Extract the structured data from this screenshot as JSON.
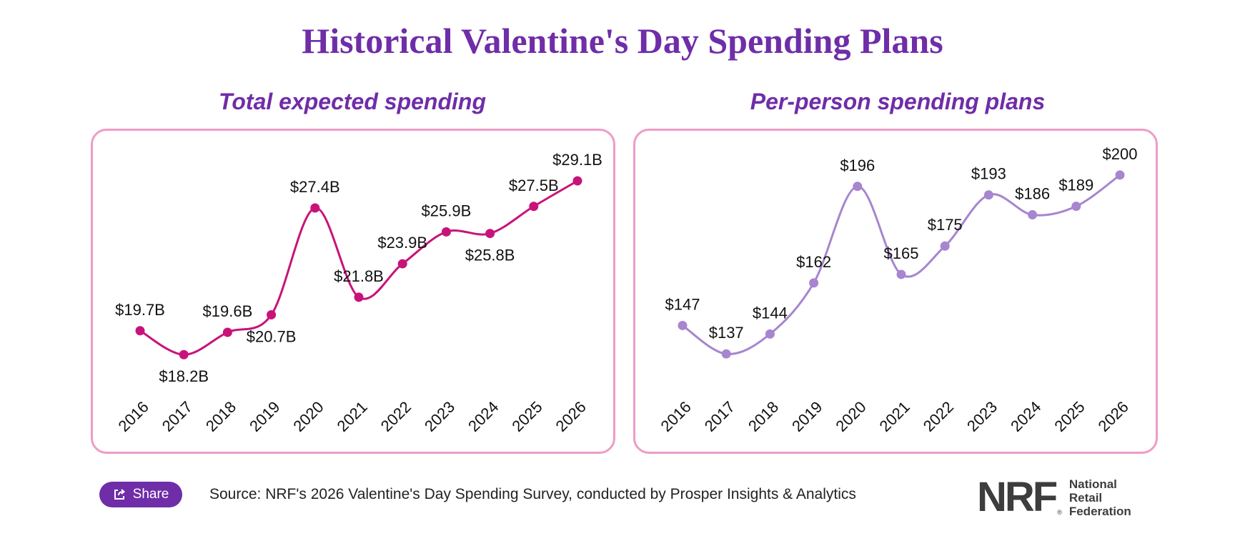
{
  "page": {
    "title": "Historical Valentine's Day Spending Plans"
  },
  "chart_data": [
    {
      "type": "line",
      "title": "Total expected spending",
      "categories": [
        "2016",
        "2017",
        "2018",
        "2019",
        "2020",
        "2021",
        "2022",
        "2023",
        "2024",
        "2025",
        "2026"
      ],
      "values": [
        19.7,
        18.2,
        19.6,
        20.7,
        27.4,
        21.8,
        23.9,
        25.9,
        25.8,
        27.5,
        29.1
      ],
      "labels": [
        "$19.7B",
        "$18.2B",
        "$19.6B",
        "$20.7B",
        "$27.4B",
        "$21.8B",
        "$23.9B",
        "$25.9B",
        "$25.8B",
        "$27.5B",
        "$29.1B"
      ],
      "label_positions": [
        "above",
        "below",
        "above",
        "below",
        "above",
        "above",
        "above",
        "above",
        "below",
        "above",
        "above"
      ],
      "ylim": [
        17,
        30
      ],
      "xlabel": "",
      "ylabel": "",
      "grid": false,
      "color": "#c8137a"
    },
    {
      "type": "line",
      "title": "Per-person spending plans",
      "categories": [
        "2016",
        "2017",
        "2018",
        "2019",
        "2020",
        "2021",
        "2022",
        "2023",
        "2024",
        "2025",
        "2026"
      ],
      "values": [
        147,
        137,
        144,
        162,
        196,
        165,
        175,
        193,
        186,
        189,
        200
      ],
      "labels": [
        "$147",
        "$137",
        "$144",
        "$162",
        "$196",
        "$165",
        "$175",
        "$193",
        "$186",
        "$189",
        "$200"
      ],
      "label_positions": [
        "above",
        "above",
        "above",
        "above",
        "above",
        "above",
        "above",
        "above",
        "above",
        "above",
        "above"
      ],
      "ylim": [
        130,
        203
      ],
      "xlabel": "",
      "ylabel": "",
      "grid": false,
      "color": "#a785cf"
    }
  ],
  "footer": {
    "share_label": "Share",
    "source": "Source: NRF's 2026 Valentine's Day Spending Survey, conducted by Prosper Insights & Analytics",
    "logo_mark": "NRF",
    "logo_lines": [
      "National",
      "Retail",
      "Federation"
    ]
  },
  "colors": {
    "title": "#6f2da8",
    "panel_border": "#ef9bc8",
    "share_bg": "#6f2da8"
  },
  "icons": {
    "share": "share-icon"
  }
}
